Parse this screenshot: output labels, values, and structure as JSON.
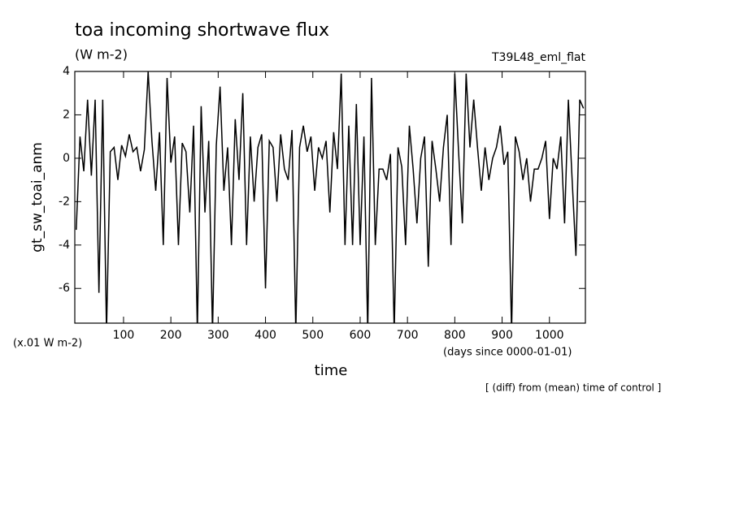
{
  "chart_data": {
    "type": "line",
    "title": "toa incoming shortwave flux",
    "units": "(W m-2)",
    "run_label": "T39L48_eml_flat",
    "ylabel": "gt_sw_toai_anm",
    "y_scale_note": "(x.01 W m-2)",
    "x_units": "(days since 0000-01-01)",
    "xlabel": "time",
    "note": "[ (diff) from (mean) time of control ]",
    "color": "#000000",
    "xlim": [
      -3,
      1076
    ],
    "ylim": [
      -7.6,
      4
    ],
    "xticks": [
      100,
      200,
      300,
      400,
      500,
      600,
      700,
      800,
      900,
      1000
    ],
    "yticks": [
      -6,
      -4,
      -2,
      0,
      2,
      4
    ],
    "x": [
      0,
      8,
      16,
      24,
      32,
      40,
      48,
      56,
      64,
      72,
      80,
      88,
      96,
      104,
      112,
      120,
      128,
      136,
      144,
      152,
      160,
      168,
      176,
      184,
      192,
      200,
      208,
      216,
      224,
      232,
      240,
      248,
      256,
      264,
      272,
      280,
      288,
      296,
      304,
      312,
      320,
      328,
      336,
      344,
      352,
      360,
      368,
      376,
      384,
      392,
      400,
      408,
      416,
      424,
      432,
      440,
      448,
      456,
      464,
      472,
      480,
      488,
      496,
      504,
      512,
      520,
      528,
      536,
      544,
      552,
      560,
      568,
      576,
      584,
      592,
      600,
      608,
      616,
      624,
      632,
      640,
      648,
      656,
      664,
      672,
      680,
      688,
      696,
      704,
      712,
      720,
      728,
      736,
      744,
      752,
      760,
      768,
      776,
      784,
      792,
      800,
      808,
      816,
      824,
      832,
      840,
      848,
      856,
      864,
      872,
      880,
      888,
      896,
      904,
      912,
      920,
      928,
      936,
      944,
      952,
      960,
      968,
      976,
      984,
      992,
      1000,
      1008,
      1016,
      1024,
      1032,
      1040,
      1048,
      1056,
      1064,
      1072
    ],
    "values": [
      -3.3,
      1.0,
      -0.6,
      2.7,
      -0.8,
      2.7,
      -6.2,
      2.7,
      -8,
      0.3,
      0.5,
      -1.0,
      0.6,
      0.1,
      1.1,
      0.3,
      0.5,
      -0.6,
      0.4,
      4,
      0.8,
      -1.5,
      1.2,
      -4.0,
      3.7,
      -0.2,
      1.0,
      -4.0,
      0.7,
      0.3,
      -2.5,
      1.5,
      -8,
      2.4,
      -2.5,
      0.8,
      -8,
      0.6,
      3.3,
      -1.5,
      0.5,
      -4.0,
      1.8,
      -1.0,
      3.0,
      -4.0,
      1.0,
      -2.0,
      0.5,
      1.1,
      -6.0,
      0.8,
      0.5,
      -2.0,
      1.1,
      -0.5,
      -1.0,
      1.3,
      -8,
      0.5,
      1.5,
      0.3,
      1.0,
      -1.5,
      0.5,
      0.0,
      0.8,
      -2.5,
      1.2,
      -0.5,
      3.9,
      -4.0,
      1.5,
      -4.0,
      2.5,
      -4.0,
      1.0,
      -8,
      3.7,
      -4.0,
      -0.5,
      -0.5,
      -1.0,
      0.2,
      -8,
      0.5,
      -0.4,
      -4.0,
      1.5,
      -0.5,
      -3.0,
      0.0,
      1.0,
      -5.0,
      0.8,
      -0.5,
      -2.0,
      0.5,
      2.0,
      -4.0,
      3.9,
      0.3,
      -3.0,
      3.9,
      0.5,
      2.7,
      0.5,
      -1.5,
      0.5,
      -1.0,
      0.0,
      0.5,
      1.5,
      -0.3,
      0.3,
      -8,
      1.0,
      0.3,
      -1.0,
      0.0,
      -2.0,
      -0.5,
      -0.5,
      0.0,
      0.8,
      -2.8,
      0.0,
      -0.5,
      1.0,
      -3.0,
      2.7,
      -1.0,
      -4.5,
      2.7,
      2.3
    ]
  }
}
